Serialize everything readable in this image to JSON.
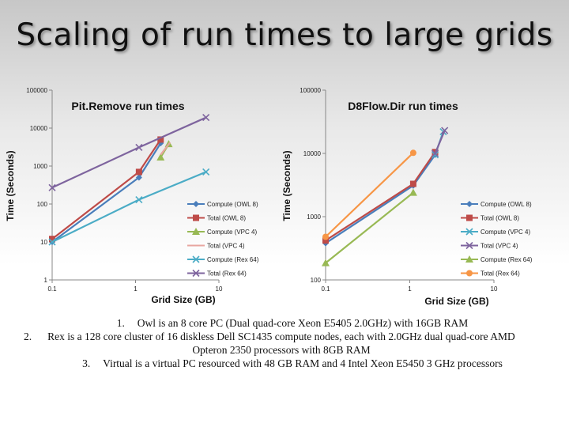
{
  "slide": {
    "title": "Scaling of run times to large grids",
    "notes": [
      {
        "number": "1.",
        "text": "Owl is an 8 core PC (Dual quad-core Xeon E5405 2.0GHz) with 16GB RAM"
      },
      {
        "number": "2.",
        "text": "Rex is a 128 core cluster of 16 diskless Dell SC1435 compute nodes, each with 2.0GHz dual quad-core AMD Opteron 2350 processors with 8GB RAM"
      },
      {
        "number": "3.",
        "text": "Virtual is a virtual PC resourced with 48 GB RAM and 4 Intel Xeon E5450 3 GHz processors"
      }
    ]
  },
  "chart_data": [
    {
      "type": "line",
      "title": "Pit.Remove run times",
      "xlabel": "Grid Size (GB)",
      "ylabel": "Time (Seconds)",
      "x_scale": "log",
      "y_scale": "log",
      "xlim": [
        0.1,
        10
      ],
      "ylim": [
        1,
        100000
      ],
      "x_ticks": [
        "0.1",
        "1",
        "10"
      ],
      "y_ticks": [
        "1",
        "10",
        "100",
        "1000",
        "10000",
        "100000"
      ],
      "legend_position": "right",
      "series": [
        {
          "name": "Compute (OWL 8)",
          "color": "#4a7ebb",
          "marker": "diamond",
          "x": [
            0.1,
            1.1,
            2.0
          ],
          "y": [
            10,
            500,
            4000
          ]
        },
        {
          "name": "Total (OWL 8)",
          "color": "#be4b48",
          "marker": "square",
          "x": [
            0.1,
            1.1,
            2.0
          ],
          "y": [
            12,
            700,
            5000
          ]
        },
        {
          "name": "Compute (VPC 4)",
          "color": "#98b954",
          "marker": "triangle",
          "x": [
            2.0,
            2.5
          ],
          "y": [
            1700,
            3800
          ]
        },
        {
          "name": "Total (VPC 4)",
          "color": "#e8a6a0",
          "marker": "none",
          "x": [
            2.0,
            2.6
          ],
          "y": [
            2000,
            4200
          ]
        },
        {
          "name": "Compute (Rex 64)",
          "color": "#4bacc6",
          "marker": "x",
          "x": [
            0.1,
            1.1,
            7.0
          ],
          "y": [
            10,
            130,
            700
          ]
        },
        {
          "name": "Total (Rex 64)",
          "color": "#7e649e",
          "marker": "x",
          "x": [
            0.1,
            1.1,
            7.0
          ],
          "y": [
            270,
            3100,
            19000
          ]
        }
      ]
    },
    {
      "type": "line",
      "title": "D8Flow.Dir run times",
      "xlabel": "Grid Size (GB)",
      "ylabel": "Time (Seconds)",
      "x_scale": "log",
      "y_scale": "log",
      "xlim": [
        0.1,
        10
      ],
      "ylim": [
        100,
        100000
      ],
      "x_ticks": [
        "0.1",
        "1",
        "10"
      ],
      "y_ticks": [
        "100",
        "1000",
        "10000",
        "100000"
      ],
      "legend_position": "right",
      "series": [
        {
          "name": "Compute (OWL 8)",
          "color": "#4a7ebb",
          "marker": "diamond",
          "x": [
            0.1,
            1.1,
            2.0
          ],
          "y": [
            380,
            3100,
            9500
          ]
        },
        {
          "name": "Total (OWL 8)",
          "color": "#be4b48",
          "marker": "square",
          "x": [
            0.1,
            1.1,
            2.0
          ],
          "y": [
            420,
            3300,
            10500
          ]
        },
        {
          "name": "Compute (VPC 4)",
          "color": "#4bacc6",
          "marker": "x",
          "x": [
            2.0,
            2.5
          ],
          "y": [
            9500,
            22000
          ]
        },
        {
          "name": "Total (VPC 4)",
          "color": "#7e649e",
          "marker": "x",
          "x": [
            2.0,
            2.6
          ],
          "y": [
            10000,
            23000
          ]
        },
        {
          "name": "Compute (Rex 64)",
          "color": "#98b954",
          "marker": "triangle",
          "x": [
            0.1,
            1.1
          ],
          "y": [
            185,
            2400
          ]
        },
        {
          "name": "Total (Rex 64)",
          "color": "#f79646",
          "marker": "circle",
          "x": [
            0.1,
            1.1
          ],
          "y": [
            480,
            10200
          ]
        }
      ]
    }
  ]
}
